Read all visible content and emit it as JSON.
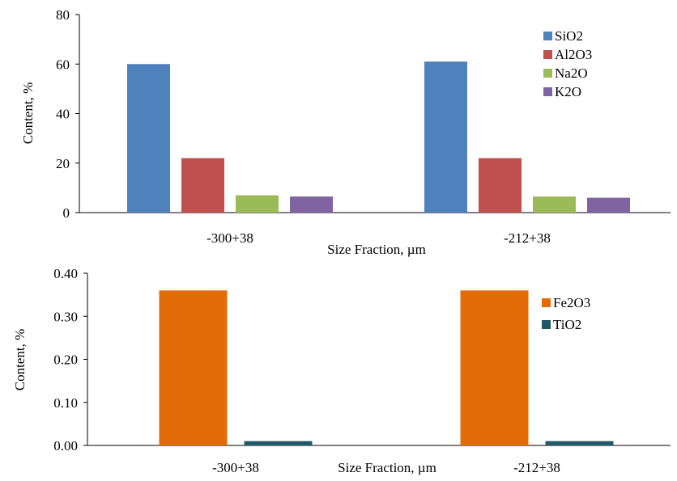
{
  "chart_data": [
    {
      "type": "bar",
      "categories": [
        "-300+38",
        "-212+38"
      ],
      "series": [
        {
          "name": "SiO2",
          "values": [
            60,
            61
          ],
          "color": "#4f81bd"
        },
        {
          "name": "Al2O3",
          "values": [
            22,
            22
          ],
          "color": "#c0504d"
        },
        {
          "name": "Na2O",
          "values": [
            7,
            6.5
          ],
          "color": "#9bbb59"
        },
        {
          "name": "K2O",
          "values": [
            6.5,
            6
          ],
          "color": "#8064a2"
        }
      ],
      "xlabel": "Size Fraction, µm",
      "ylabel": "Content, %",
      "ylim": [
        0,
        80
      ],
      "yticks": [
        "0",
        "20",
        "40",
        "60",
        "80"
      ],
      "legend_position": "top-right",
      "grid": false
    },
    {
      "type": "bar",
      "categories": [
        "-300+38",
        "-212+38"
      ],
      "series": [
        {
          "name": "Fe2O3",
          "values": [
            0.36,
            0.36
          ],
          "color": "#e36c09"
        },
        {
          "name": "TiO2",
          "values": [
            0.01,
            0.01
          ],
          "color": "#215967"
        }
      ],
      "xlabel": "Size Fraction, µm",
      "ylabel": "Content, %",
      "ylim": [
        0,
        0.4
      ],
      "yticks": [
        "0.00",
        "0.10",
        "0.20",
        "0.30",
        "0.40"
      ],
      "legend_position": "top-right",
      "grid": false
    }
  ]
}
